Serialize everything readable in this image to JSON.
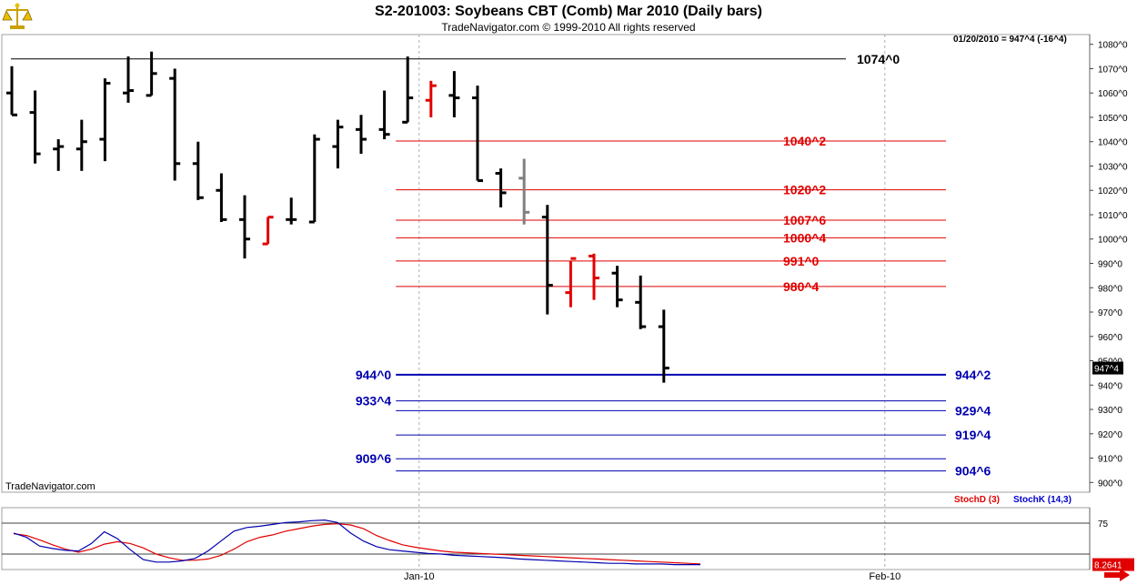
{
  "header": {
    "title": "S2-201003:  Soybeans CBT (Comb) Mar 2010  (Daily bars)",
    "subtitle": "TradeNavigator.com © 1999-2010 All rights reserved"
  },
  "watermark": "TradeNavigator.com",
  "readout": "01/20/2010 = 947^4 (-16^4)",
  "current_price_tag": "947^4",
  "stoch_d_label": "StochD (3)",
  "stoch_k_label": "StochK (14,3)",
  "stoch_value_tag": "8.2641",
  "colors": {
    "up_bar": "#000000",
    "down_bar_red": "#e00000",
    "resistance": "#e00000",
    "support": "#0000b0",
    "stoch_d": "#e00000",
    "stoch_k": "#0000d0",
    "gray_bar": "#808080",
    "green_tick": "#00c000"
  },
  "icons": {
    "logo": "scales-icon",
    "scroll": "right-arrow-icon"
  },
  "chart_data": [
    {
      "type": "ohlc",
      "ylim": [
        896,
        1084
      ],
      "yticks": [
        "1080^0",
        "1070^0",
        "1060^0",
        "1050^0",
        "1040^0",
        "1030^0",
        "1020^0",
        "1010^0",
        "1000^0",
        "990^0",
        "980^0",
        "970^0",
        "960^0",
        "950^0",
        "940^0",
        "930^0",
        "920^0",
        "910^0",
        "900^0"
      ],
      "ytick_values": [
        1080,
        1070,
        1060,
        1050,
        1040,
        1030,
        1020,
        1010,
        1000,
        990,
        980,
        970,
        960,
        950,
        940,
        930,
        920,
        910,
        900
      ],
      "xticks": [
        {
          "label": "Jan-10",
          "bar": 18
        },
        {
          "label": "Feb-10",
          "bar": 38
        }
      ],
      "bars": [
        {
          "o": 1060,
          "h": 1071,
          "l": 1051,
          "c": 1051,
          "color": "black"
        },
        {
          "o": 1052,
          "h": 1061,
          "l": 1031,
          "c": 1035,
          "color": "black"
        },
        {
          "o": 1037,
          "h": 1041,
          "l": 1028,
          "c": 1038,
          "color": "black"
        },
        {
          "o": 1037,
          "h": 1049,
          "l": 1028,
          "c": 1040,
          "color": "black"
        },
        {
          "o": 1041,
          "h": 1066,
          "l": 1032,
          "c": 1064,
          "color": "black"
        },
        {
          "o": 1060,
          "h": 1075,
          "l": 1056,
          "c": 1061,
          "color": "black"
        },
        {
          "o": 1059,
          "h": 1077,
          "l": 1059,
          "c": 1068,
          "color": "black"
        },
        {
          "o": 1066,
          "h": 1070,
          "l": 1024,
          "c": 1031,
          "color": "black"
        },
        {
          "o": 1031,
          "h": 1040,
          "l": 1016,
          "c": 1017,
          "color": "black"
        },
        {
          "o": 1020,
          "h": 1027,
          "l": 1007,
          "c": 1008,
          "color": "black"
        },
        {
          "o": 1008,
          "h": 1018,
          "l": 992,
          "c": 1000,
          "color": "black"
        },
        {
          "o": 998,
          "h": 1009,
          "l": 998,
          "c": 1009,
          "color": "red"
        },
        {
          "o": 1008,
          "h": 1017,
          "l": 1006,
          "c": 1008,
          "color": "black"
        },
        {
          "o": 1007,
          "h": 1043,
          "l": 1007,
          "c": 1041,
          "color": "black"
        },
        {
          "o": 1038,
          "h": 1049,
          "l": 1029,
          "c": 1046,
          "color": "black"
        },
        {
          "o": 1045,
          "h": 1051,
          "l": 1035,
          "c": 1041,
          "color": "black"
        },
        {
          "o": 1045,
          "h": 1061,
          "l": 1041,
          "c": 1043,
          "color": "black"
        },
        {
          "o": 1048,
          "h": 1075,
          "l": 1048,
          "c": 1058,
          "color": "black"
        },
        {
          "o": 1057,
          "h": 1065,
          "l": 1050,
          "c": 1063,
          "color": "red"
        },
        {
          "o": 1059,
          "h": 1069,
          "l": 1050,
          "c": 1058,
          "color": "black"
        },
        {
          "o": 1058,
          "h": 1063,
          "l": 1024,
          "c": 1024,
          "color": "black"
        },
        {
          "o": 1027,
          "h": 1029,
          "l": 1013,
          "c": 1019,
          "color": "black"
        },
        {
          "o": 1025,
          "h": 1033,
          "l": 1006,
          "c": 1011,
          "color": "gray"
        },
        {
          "o": 1009,
          "h": 1014,
          "l": 969,
          "c": 981,
          "color": "black"
        },
        {
          "o": 978,
          "h": 991,
          "l": 972,
          "c": 992,
          "color": "red"
        },
        {
          "o": 993,
          "h": 994,
          "l": 975,
          "c": 984,
          "color": "red"
        },
        {
          "o": 986,
          "h": 989,
          "l": 972,
          "c": 975,
          "color": "black"
        },
        {
          "o": 974,
          "h": 985,
          "l": 963,
          "c": 964,
          "color": "black"
        },
        {
          "o": 964,
          "h": 971,
          "l": 941,
          "c": 947,
          "color": "black"
        }
      ],
      "levels": [
        {
          "label": "1074^0",
          "value": 1074.0,
          "from_bar": -1,
          "color": "black"
        },
        {
          "label": "1040^2",
          "value": 1040.25,
          "from_bar": 17,
          "color": "red"
        },
        {
          "label": "1020^2",
          "value": 1020.25,
          "from_bar": 17,
          "color": "red"
        },
        {
          "label": "1007^6",
          "value": 1007.75,
          "from_bar": 17,
          "color": "red"
        },
        {
          "label": "1000^4",
          "value": 1000.5,
          "from_bar": 17,
          "color": "red"
        },
        {
          "label": "991^0",
          "value": 991.0,
          "from_bar": 17,
          "color": "red"
        },
        {
          "label": "980^4",
          "value": 980.5,
          "from_bar": 17,
          "color": "red"
        },
        {
          "label": "944^2",
          "left_label": "944^0",
          "value": 944.25,
          "from_bar": 17,
          "color": "blue",
          "bold": true
        },
        {
          "label": "",
          "left_label": "933^4",
          "value": 933.5,
          "from_bar": 17,
          "color": "blue"
        },
        {
          "label": "929^4",
          "value": 929.5,
          "from_bar": 17,
          "color": "blue"
        },
        {
          "label": "919^4",
          "value": 919.5,
          "from_bar": 17,
          "color": "blue"
        },
        {
          "label": "",
          "left_label": "909^6",
          "value": 909.75,
          "from_bar": 17,
          "color": "blue"
        },
        {
          "label": "904^6",
          "value": 904.75,
          "from_bar": 17,
          "color": "blue"
        }
      ]
    },
    {
      "type": "line",
      "ylim": [
        0,
        100
      ],
      "yticks": [
        "75"
      ],
      "ytick_values": [
        75
      ],
      "hlines": [
        75,
        25
      ],
      "series": [
        {
          "name": "StochD (3)",
          "color": "red",
          "values": [
            58,
            55,
            48,
            40,
            33,
            28,
            33,
            41,
            45,
            42,
            35,
            25,
            19,
            15,
            15,
            17,
            23,
            33,
            45,
            52,
            56,
            62,
            66,
            70,
            73,
            74,
            72,
            66,
            55,
            47,
            40,
            36,
            33,
            30,
            28,
            27,
            26,
            25,
            24,
            23,
            22,
            21,
            20,
            19,
            18,
            17,
            16,
            15,
            14,
            13,
            12,
            11,
            10,
            9
          ]
        },
        {
          "name": "StochK (14,3)",
          "color": "blue",
          "values": [
            59,
            52,
            38,
            34,
            31,
            30,
            42,
            61,
            50,
            32,
            16,
            12,
            12,
            14,
            18,
            30,
            46,
            62,
            68,
            70,
            73,
            76,
            77,
            79,
            80,
            76,
            59,
            46,
            37,
            32,
            30,
            28,
            26,
            25,
            23,
            22,
            21,
            20,
            19,
            17,
            16,
            15,
            14,
            13,
            12,
            11,
            10,
            10,
            9,
            9,
            9,
            8,
            8,
            8
          ]
        }
      ]
    }
  ]
}
